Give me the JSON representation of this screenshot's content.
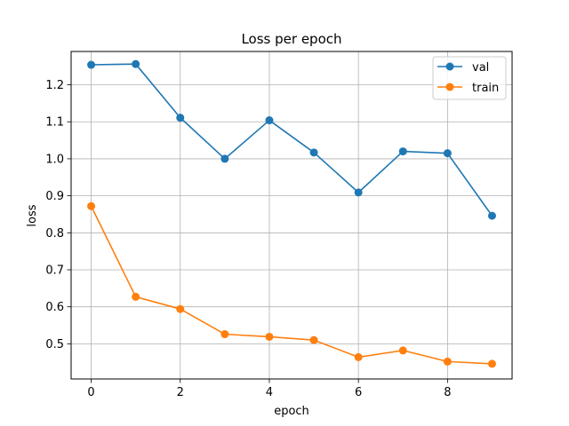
{
  "chart_data": {
    "type": "line",
    "title": "Loss per epoch",
    "xlabel": "epoch",
    "ylabel": "loss",
    "x": [
      0,
      1,
      2,
      3,
      4,
      5,
      6,
      7,
      8,
      9
    ],
    "xlim": [
      -0.45,
      9.45
    ],
    "ylim": [
      0.405,
      1.29
    ],
    "xticks": [
      0,
      2,
      4,
      6,
      8
    ],
    "yticks": [
      0.5,
      0.6,
      0.7,
      0.8,
      0.9,
      1.0,
      1.1,
      1.2
    ],
    "ytick_labels": [
      "0.5",
      "0.6",
      "0.7",
      "0.8",
      "0.9",
      "1.0",
      "1.1",
      "1.2"
    ],
    "grid": true,
    "legend_position": "top-right",
    "series": [
      {
        "name": "val",
        "color": "#1f77b4",
        "values": [
          1.254,
          1.256,
          1.111,
          1.0,
          1.104,
          1.017,
          0.909,
          1.02,
          1.015,
          0.846
        ]
      },
      {
        "name": "train",
        "color": "#ff7f0e",
        "values": [
          0.872,
          0.627,
          0.594,
          0.526,
          0.519,
          0.51,
          0.464,
          0.482,
          0.452,
          0.446
        ]
      }
    ]
  }
}
